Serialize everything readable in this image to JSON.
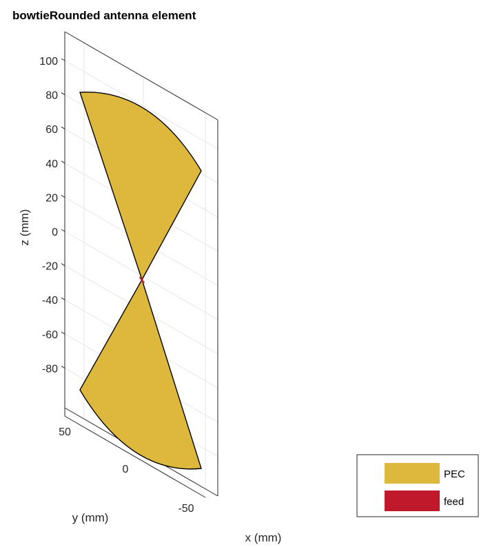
{
  "chart_data": {
    "type": "3d-surface",
    "title": "bowtieRounded antenna element",
    "xlabel": "x (mm)",
    "ylabel": "y (mm)",
    "zlabel": "z (mm)",
    "z_ticks": [
      "100",
      "80",
      "60",
      "40",
      "20",
      "0",
      "-20",
      "-40",
      "-60",
      "-80"
    ],
    "y_ticks": [
      "50",
      "0"
    ],
    "x_ticks": [
      "-50"
    ],
    "zlim": [
      -100,
      100
    ],
    "legend": {
      "position": "bottom-right",
      "entries": [
        {
          "label": "PEC",
          "color": "#DDB83C"
        },
        {
          "label": "feed",
          "color": "#C0192C"
        }
      ]
    },
    "colors": {
      "pec": "#DDB83C",
      "feed": "#C0192C",
      "edge": "#000000",
      "grid": "#E6E6E6",
      "axis": "#262626"
    }
  }
}
